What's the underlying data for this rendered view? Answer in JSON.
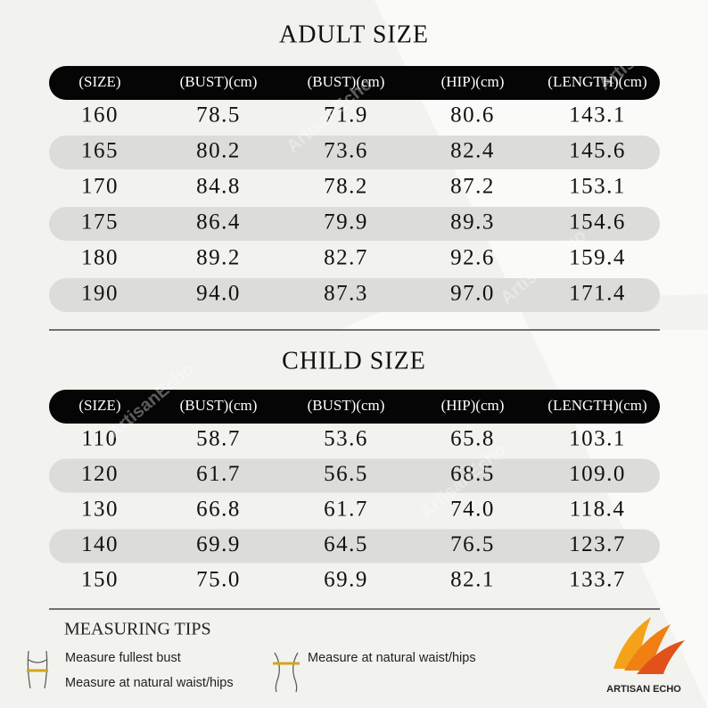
{
  "watermark": "ArtisanEcho",
  "adult": {
    "title": "ADULT SIZE",
    "header": [
      "(SIZE)",
      "(BUST)(cm)",
      "(BUST)(cm)",
      "(HIP)(cm)",
      "(LENGTH)(cm)"
    ],
    "rows": [
      [
        "160",
        "78.5",
        "71.9",
        "80.6",
        "143.1"
      ],
      [
        "165",
        "80.2",
        "73.6",
        "82.4",
        "145.6"
      ],
      [
        "170",
        "84.8",
        "78.2",
        "87.2",
        "153.1"
      ],
      [
        "175",
        "86.4",
        "79.9",
        "89.3",
        "154.6"
      ],
      [
        "180",
        "89.2",
        "82.7",
        "92.6",
        "159.4"
      ],
      [
        "190",
        "94.0",
        "87.3",
        "97.0",
        "171.4"
      ]
    ]
  },
  "child": {
    "title": "CHILD SIZE",
    "header": [
      "(SIZE)",
      "(BUST)(cm)",
      "(BUST)(cm)",
      "(HIP)(cm)",
      "(LENGTH)(cm)"
    ],
    "rows": [
      [
        "110",
        "58.7",
        "53.6",
        "65.8",
        "103.1"
      ],
      [
        "120",
        "61.7",
        "56.5",
        "68.5",
        "109.0"
      ],
      [
        "130",
        "66.8",
        "61.7",
        "74.0",
        "118.4"
      ],
      [
        "140",
        "69.9",
        "64.5",
        "76.5",
        "123.7"
      ],
      [
        "150",
        "75.0",
        "69.9",
        "82.1",
        "133.7"
      ]
    ]
  },
  "tips": {
    "title": "MEASURING TIPS",
    "items": [
      "Measure fullest bust",
      "Measure at natural waist/hips",
      "Measure at natural waist/hips"
    ]
  },
  "logo": "ARTISAN ECHO"
}
